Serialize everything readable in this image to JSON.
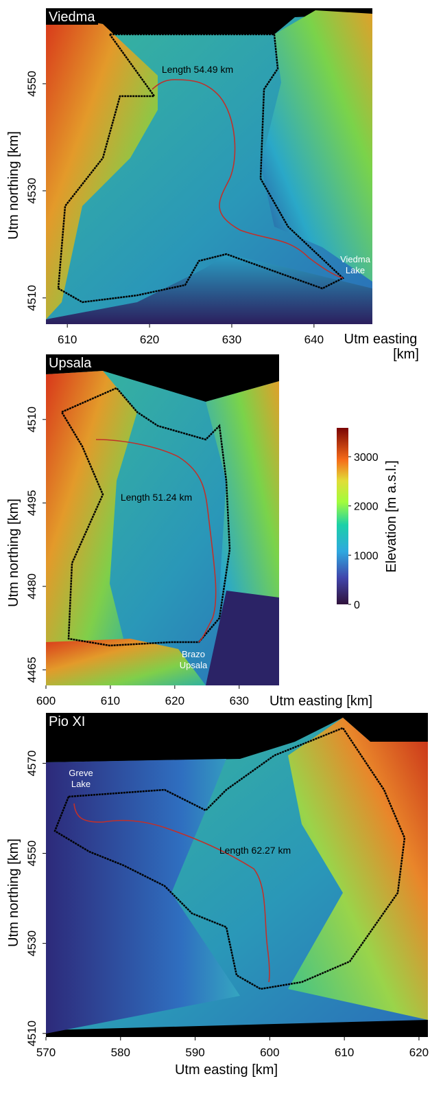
{
  "panels": [
    {
      "title": "Viedma",
      "length_label": "Length 54.49 km",
      "place_label": [
        "Viedma",
        "Lake"
      ],
      "xlim": [
        607.4,
        647.1
      ],
      "xticks": [
        610,
        620,
        630,
        640
      ],
      "ylim": [
        4505.1,
        4564.1
      ],
      "yticks": [
        4510,
        4530,
        4550
      ],
      "x_label": [
        "Utm easting",
        "[km]"
      ],
      "y_label": "Utm northing [km]"
    },
    {
      "title": "Upsala",
      "length_label": "Length 51.24 km",
      "place_label": [
        "Brazo",
        "Upsala"
      ],
      "xlim": [
        600,
        636.2
      ],
      "xticks": [
        600,
        610,
        620,
        630
      ],
      "ylim": [
        4462.2,
        4521.7
      ],
      "yticks": [
        4465,
        4480,
        4495,
        4510
      ],
      "x_label": "Utm easting [km]",
      "y_label": "Utm northing [km]"
    },
    {
      "title": "Pio XI",
      "length_label": "Length 62.27 km",
      "place_label": [
        "Greve",
        "Lake"
      ],
      "xlim": [
        570,
        621.2
      ],
      "xticks": [
        570,
        580,
        590,
        600,
        610,
        620
      ],
      "ylim": [
        4509.2,
        4581.2
      ],
      "yticks": [
        4510,
        4530,
        4550,
        4570
      ],
      "x_label": "Utm easting [km]",
      "y_label": "Utm northing [km]"
    }
  ],
  "colorbar": {
    "label": "Elevation [m a.s.l.]",
    "clim": [
      0,
      3586
    ],
    "ticks": [
      0,
      1000,
      2000,
      3000
    ]
  }
}
